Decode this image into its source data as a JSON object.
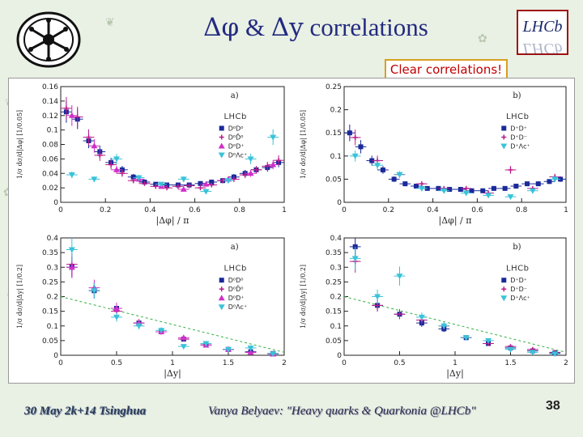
{
  "slide": {
    "title_sym1": "Δφ",
    "title_amp": " & ",
    "title_sym2": "Δy",
    "title_rest": " correlations",
    "callout": "Clear correlations!",
    "footer_left": "30 May 2k+14 Tsinghua",
    "footer_mid": "Vanya Belyaev: \"Heavy quarks & Quarkonia @LHCb\"",
    "page_number": "38",
    "logo_right_text": "LHCb"
  },
  "chart_data": [
    {
      "id": "a-phi",
      "type": "scatter",
      "tag": "a)",
      "brand": "LHCb",
      "xlabel": "|Δφ| / π",
      "ylabel": "1/σ dσ/d|Δφ| [1/0.05]",
      "xlim": [
        0,
        1
      ],
      "ylim": [
        0,
        0.16
      ],
      "xticks": [
        0,
        0.2,
        0.4,
        0.6,
        0.8,
        1
      ],
      "yticks": [
        0,
        0.02,
        0.04,
        0.06,
        0.08,
        0.1,
        0.12,
        0.14,
        0.16
      ],
      "legend": [
        "D⁰D⁰",
        "D⁰D̄⁰",
        "D⁰D⁺",
        "D⁰Λc⁺"
      ],
      "series": [
        {
          "name": "D⁰D⁰",
          "color": "#1a2a9a",
          "marker": "square",
          "x": [
            0.025,
            0.075,
            0.125,
            0.175,
            0.225,
            0.275,
            0.325,
            0.375,
            0.425,
            0.475,
            0.525,
            0.575,
            0.625,
            0.675,
            0.725,
            0.775,
            0.825,
            0.875,
            0.925,
            0.975
          ],
          "y": [
            0.125,
            0.115,
            0.085,
            0.07,
            0.055,
            0.045,
            0.035,
            0.028,
            0.025,
            0.024,
            0.024,
            0.024,
            0.026,
            0.028,
            0.03,
            0.035,
            0.04,
            0.045,
            0.048,
            0.055
          ]
        },
        {
          "name": "D⁰D̄⁰",
          "color": "#b81a8a",
          "marker": "cross",
          "x": [
            0.025,
            0.075,
            0.125,
            0.175,
            0.225,
            0.275,
            0.325,
            0.375,
            0.425,
            0.475,
            0.525,
            0.575,
            0.625,
            0.675,
            0.725,
            0.775,
            0.825,
            0.875,
            0.925,
            0.975
          ],
          "y": [
            0.13,
            0.118,
            0.09,
            0.065,
            0.052,
            0.04,
            0.03,
            0.026,
            0.022,
            0.02,
            0.022,
            0.023,
            0.02,
            0.024,
            0.03,
            0.032,
            0.038,
            0.045,
            0.05,
            0.058
          ]
        },
        {
          "name": "D⁰D⁺",
          "color": "#d030c8",
          "marker": "triangle",
          "x": [
            0.05,
            0.15,
            0.25,
            0.35,
            0.45,
            0.55,
            0.65,
            0.75,
            0.85,
            0.95
          ],
          "y": [
            0.12,
            0.078,
            0.045,
            0.032,
            0.022,
            0.018,
            0.025,
            0.032,
            0.04,
            0.052
          ]
        },
        {
          "name": "D⁰Λc⁺",
          "color": "#3ac2d8",
          "marker": "triangle-down",
          "x": [
            0.05,
            0.15,
            0.25,
            0.35,
            0.45,
            0.55,
            0.65,
            0.75,
            0.85,
            0.95
          ],
          "y": [
            0.038,
            0.032,
            0.06,
            0.034,
            0.025,
            0.032,
            0.015,
            0.03,
            0.06,
            0.09
          ]
        }
      ]
    },
    {
      "id": "b-phi",
      "type": "scatter",
      "tag": "b)",
      "brand": "LHCb",
      "xlabel": "|Δφ| / π",
      "ylabel": "1/σ dσ/d|Δφ| [1/0.05]",
      "xlim": [
        0,
        1
      ],
      "ylim": [
        0,
        0.25
      ],
      "xticks": [
        0,
        0.2,
        0.4,
        0.6,
        0.8,
        1
      ],
      "yticks": [
        0,
        0.05,
        0.1,
        0.15,
        0.2,
        0.25
      ],
      "legend": [
        "D⁺D⁺",
        "D⁺D⁻",
        "D⁺Λc⁺"
      ],
      "series": [
        {
          "name": "D⁺D⁺",
          "color": "#1a2a9a",
          "marker": "square",
          "x": [
            0.025,
            0.075,
            0.125,
            0.175,
            0.225,
            0.275,
            0.325,
            0.375,
            0.425,
            0.475,
            0.525,
            0.575,
            0.625,
            0.675,
            0.725,
            0.775,
            0.825,
            0.875,
            0.925,
            0.975
          ],
          "y": [
            0.15,
            0.12,
            0.09,
            0.07,
            0.05,
            0.04,
            0.035,
            0.03,
            0.03,
            0.028,
            0.028,
            0.025,
            0.025,
            0.03,
            0.03,
            0.035,
            0.04,
            0.04,
            0.045,
            0.05
          ]
        },
        {
          "name": "D⁺D⁻",
          "color": "#b81a8a",
          "marker": "cross",
          "x": [
            0.05,
            0.15,
            0.25,
            0.35,
            0.45,
            0.55,
            0.65,
            0.75,
            0.85,
            0.95
          ],
          "y": [
            0.14,
            0.09,
            0.06,
            0.04,
            0.03,
            0.03,
            0.02,
            0.07,
            0.03,
            0.055
          ]
        },
        {
          "name": "D⁺Λc⁺",
          "color": "#3ac2d8",
          "marker": "triangle-down",
          "x": [
            0.05,
            0.15,
            0.25,
            0.35,
            0.45,
            0.55,
            0.65,
            0.75,
            0.85,
            0.95
          ],
          "y": [
            0.1,
            0.08,
            0.06,
            0.03,
            0.025,
            0.02,
            0.015,
            0.012,
            0.025,
            0.05
          ]
        }
      ]
    },
    {
      "id": "a-y",
      "type": "scatter",
      "tag": "a)",
      "brand": "LHCb",
      "xlabel": "|Δy|",
      "ylabel": "1/σ dσ/d|Δy| [1/0.2]",
      "xlim": [
        0,
        2
      ],
      "ylim": [
        0,
        0.4
      ],
      "xticks": [
        0,
        0.5,
        1,
        1.5,
        2
      ],
      "yticks": [
        0,
        0.05,
        0.1,
        0.15,
        0.2,
        0.25,
        0.3,
        0.35,
        0.4
      ],
      "legend": [
        "D⁰D⁰",
        "D⁰D̄⁰",
        "D⁰D⁺",
        "D⁰Λc⁺"
      ],
      "fit_line": {
        "x": [
          0,
          2
        ],
        "y": [
          0.2,
          0.01
        ]
      },
      "series": [
        {
          "name": "D⁰D⁰",
          "color": "#1a2a9a",
          "marker": "square",
          "x": [
            0.1,
            0.3,
            0.5,
            0.7,
            0.9,
            1.1,
            1.3,
            1.5,
            1.7,
            1.9
          ],
          "y": [
            0.3,
            0.22,
            0.16,
            0.11,
            0.08,
            0.055,
            0.035,
            0.02,
            0.012,
            0.006
          ]
        },
        {
          "name": "D⁰D̄⁰",
          "color": "#b81a8a",
          "marker": "cross",
          "x": [
            0.1,
            0.3,
            0.5,
            0.7,
            0.9,
            1.1,
            1.3,
            1.5,
            1.7,
            1.9
          ],
          "y": [
            0.31,
            0.22,
            0.15,
            0.11,
            0.08,
            0.055,
            0.035,
            0.02,
            0.01,
            0.005
          ]
        },
        {
          "name": "D⁰D⁺",
          "color": "#d030c8",
          "marker": "triangle",
          "x": [
            0.1,
            0.3,
            0.5,
            0.7,
            0.9,
            1.1,
            1.3,
            1.5,
            1.7,
            1.9
          ],
          "y": [
            0.3,
            0.23,
            0.16,
            0.11,
            0.08,
            0.06,
            0.035,
            0.02,
            0.01,
            0.004
          ]
        },
        {
          "name": "D⁰Λc⁺",
          "color": "#3ac2d8",
          "marker": "triangle-down",
          "x": [
            0.1,
            0.3,
            0.5,
            0.7,
            0.9,
            1.1,
            1.3,
            1.5,
            1.7,
            1.9
          ],
          "y": [
            0.36,
            0.22,
            0.13,
            0.1,
            0.085,
            0.03,
            0.04,
            0.02,
            0.025,
            0.005
          ]
        }
      ]
    },
    {
      "id": "b-y",
      "type": "scatter",
      "tag": "b)",
      "brand": "LHCb",
      "xlabel": "|Δy|",
      "ylabel": "1/σ dσ/d|Δy| [1/0.2]",
      "xlim": [
        0,
        2
      ],
      "ylim": [
        0,
        0.4
      ],
      "xticks": [
        0,
        0.5,
        1,
        1.5,
        2
      ],
      "yticks": [
        0,
        0.05,
        0.1,
        0.15,
        0.2,
        0.25,
        0.3,
        0.35,
        0.4
      ],
      "legend": [
        "D⁺D⁺",
        "D⁺D⁻",
        "D⁺Λc⁺"
      ],
      "fit_line": {
        "x": [
          0,
          2
        ],
        "y": [
          0.2,
          0.01
        ]
      },
      "series": [
        {
          "name": "D⁺D⁺",
          "color": "#1a2a9a",
          "marker": "square",
          "x": [
            0.1,
            0.3,
            0.5,
            0.7,
            0.9,
            1.1,
            1.3,
            1.5,
            1.7,
            1.9
          ],
          "y": [
            0.37,
            0.17,
            0.14,
            0.11,
            0.09,
            0.06,
            0.04,
            0.025,
            0.015,
            0.008
          ]
        },
        {
          "name": "D⁺D⁻",
          "color": "#b81a8a",
          "marker": "cross",
          "x": [
            0.1,
            0.3,
            0.5,
            0.7,
            0.9,
            1.1,
            1.3,
            1.5,
            1.7,
            1.9
          ],
          "y": [
            0.32,
            0.17,
            0.14,
            0.12,
            0.1,
            0.06,
            0.04,
            0.03,
            0.02,
            0.01
          ]
        },
        {
          "name": "D⁺Λc⁺",
          "color": "#3ac2d8",
          "marker": "triangle-down",
          "x": [
            0.1,
            0.3,
            0.5,
            0.7,
            0.9,
            1.1,
            1.3,
            1.5,
            1.7,
            1.9
          ],
          "y": [
            0.33,
            0.2,
            0.27,
            0.13,
            0.1,
            0.06,
            0.05,
            0.02,
            0.01,
            0.005
          ]
        }
      ]
    }
  ]
}
